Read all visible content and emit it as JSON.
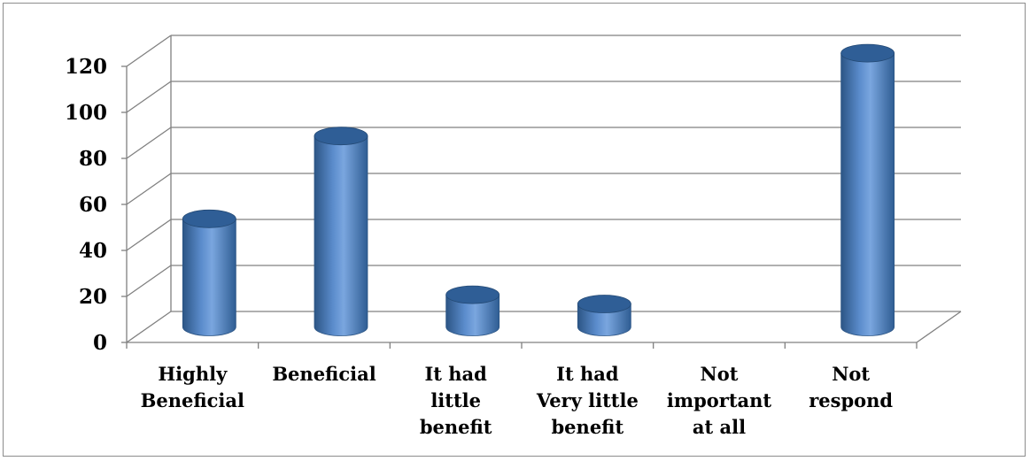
{
  "chart_data": {
    "type": "bar",
    "style": "3d-cylinder",
    "title": "",
    "xlabel": "",
    "ylabel": "",
    "categories": [
      [
        "Highly",
        "Beneficial"
      ],
      [
        "Beneficial"
      ],
      [
        "It had",
        "little",
        "benefit"
      ],
      [
        "It had",
        "Very little",
        "benefit"
      ],
      [
        "Not",
        "important",
        "at all"
      ],
      [
        "Not",
        "respond"
      ]
    ],
    "values": [
      47,
      83,
      14,
      10,
      0,
      119
    ],
    "ylim": [
      0,
      120
    ],
    "yticks": [
      "0",
      "20",
      "40",
      "60",
      "80",
      "100",
      "120"
    ],
    "grid": true,
    "legend": "none",
    "colors": {
      "bar": "#4f81bd",
      "bar_dark": "#2c5585",
      "bar_light": "#8fb3e3",
      "grid": "#808080"
    }
  }
}
